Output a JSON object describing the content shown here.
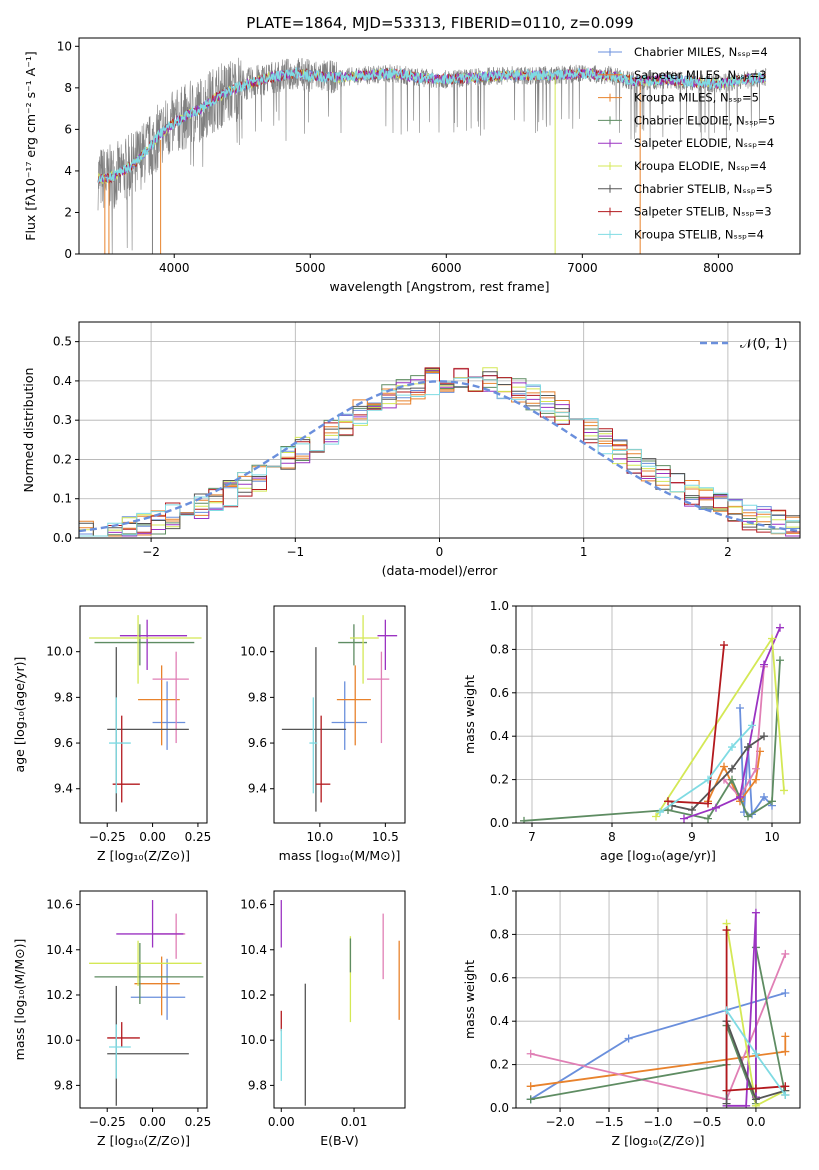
{
  "figure_title": "PLATE=1864, MJD=53313, FIBERID=0110, z=0.099",
  "colors": {
    "Chabrier MILES": "#6a8fdc",
    "Salpeter MILES": "#e8822c",
    "Kroupa MILES": "#e8822c",
    "Chabrier ELODIE": "#5e8c62",
    "Salpeter ELODIE": "#9b33c2",
    "Kroupa ELODIE": "#d4e855",
    "Chabrier STELIB": "#555555",
    "Salpeter STELIB": "#b3191e",
    "Kroupa STELIB": "#7fdbe3",
    "pink": "#e07fb5",
    "gray_data": "#808080",
    "normal_curve": "#6a8fdc"
  },
  "chart_data": [
    {
      "id": "spectrum",
      "type": "line",
      "xlabel": "wavelength [Angstrom, rest frame]",
      "ylabel": "Flux [fλ10⁻¹⁷ erg cm⁻² s⁻¹ A⁻¹]",
      "xlim": [
        3300,
        8600
      ],
      "ylim": [
        0,
        10.4
      ],
      "xticks": [
        4000,
        5000,
        6000,
        7000,
        8000
      ],
      "yticks": [
        0,
        2,
        4,
        6,
        8,
        10
      ],
      "legend_position": "right",
      "legend": [
        {
          "label": "Chabrier MILES, Nₛₛₚ=4",
          "color": "#6a8fdc"
        },
        {
          "label": "Salpeter MILES, Nₛₛₚ=3",
          "color": "#e8822c"
        },
        {
          "label": "Kroupa MILES, Nₛₛₚ=5",
          "color": "#e8822c"
        },
        {
          "label": "Chabrier ELODIE, Nₛₛₚ=5",
          "color": "#5e8c62"
        },
        {
          "label": "Salpeter ELODIE, Nₛₛₚ=4",
          "color": "#9b33c2"
        },
        {
          "label": "Kroupa ELODIE, Nₛₛₚ=4",
          "color": "#d4e855"
        },
        {
          "label": "Chabrier STELIB, Nₛₛₚ=5",
          "color": "#555555"
        },
        {
          "label": "Salpeter STELIB, Nₛₛₚ=3",
          "color": "#b3191e"
        },
        {
          "label": "Kroupa STELIB, Nₛₛₚ=4",
          "color": "#7fdbe3"
        }
      ],
      "continuum": {
        "x": [
          3440,
          3500,
          3600,
          3700,
          3800,
          3900,
          4000,
          4100,
          4200,
          4300,
          4400,
          4500,
          4600,
          4700,
          4800,
          4900,
          5000,
          5200,
          5400,
          5600,
          5800,
          6000,
          6200,
          6400,
          6600,
          6800,
          7000,
          7200,
          7400,
          7600,
          7800,
          8000,
          8200,
          8350
        ],
        "y": [
          3.7,
          3.6,
          3.9,
          4.3,
          5.0,
          5.8,
          6.3,
          6.7,
          7.0,
          7.5,
          7.8,
          8.1,
          8.3,
          8.5,
          8.6,
          8.7,
          8.6,
          8.5,
          8.6,
          8.7,
          8.5,
          8.4,
          8.5,
          8.6,
          8.6,
          8.6,
          8.7,
          8.6,
          8.3,
          8.4,
          8.3,
          8.2,
          8.4,
          8.5
        ]
      },
      "spikes": [
        {
          "x": 3490,
          "y0": 0,
          "y1": 3.8,
          "color": "#e8822c"
        },
        {
          "x": 3520,
          "y0": 0,
          "y1": 3.6,
          "color": "#e8822c"
        },
        {
          "x": 3840,
          "y0": 0,
          "y1": 4.8,
          "color": "#808080"
        },
        {
          "x": 3900,
          "y0": 0,
          "y1": 5.5,
          "color": "#e8822c"
        },
        {
          "x": 6800,
          "y0": 0,
          "y1": 8.6,
          "color": "#d4e855"
        },
        {
          "x": 7425,
          "y0": 0,
          "y1": 8.3,
          "color": "#e8822c"
        }
      ]
    },
    {
      "id": "residual_histogram",
      "type": "histogram",
      "xlabel": "(data-model)/error",
      "ylabel": "Normed distribution",
      "xlim": [
        -2.5,
        2.5
      ],
      "ylim": [
        0,
        0.55
      ],
      "xticks": [
        -2,
        -1,
        0,
        1,
        2
      ],
      "yticks": [
        0.0,
        0.1,
        0.2,
        0.3,
        0.4,
        0.5
      ],
      "grid": true,
      "legend": [
        {
          "label": "𝒩(0, 1)",
          "style": "dashed",
          "color": "#6a8fdc"
        }
      ],
      "legend_position": "top-right",
      "bin_width": 0.1
    },
    {
      "id": "age_vs_Z",
      "type": "errorbar",
      "xlabel": "Z [log₁₀(Z/Z⊙)]",
      "ylabel": "age  [log₁₀(age/yr)]",
      "xlim": [
        -0.4,
        0.3
      ],
      "ylim": [
        9.25,
        10.2
      ],
      "xticks": [
        -0.25,
        0.0,
        0.25
      ],
      "yticks": [
        9.4,
        9.6,
        9.8,
        10.0
      ],
      "points": [
        {
          "x": 0.08,
          "y": 9.69,
          "xerr": [
            0.08,
            0.1
          ],
          "yerr": [
            0.12,
            0.18
          ],
          "color": "#6a8fdc"
        },
        {
          "x": 0.05,
          "y": 9.79,
          "xerr": [
            0.13,
            0.1
          ],
          "yerr": [
            0.2,
            0.15
          ],
          "color": "#e8822c"
        },
        {
          "x": 0.13,
          "y": 9.88,
          "xerr": [
            0.13,
            0.07
          ],
          "yerr": [
            0.28,
            0.12
          ],
          "color": "#e07fb5"
        },
        {
          "x": -0.07,
          "y": 10.04,
          "xerr": [
            0.25,
            0.3
          ],
          "yerr": [
            0.1,
            0.08
          ],
          "color": "#5e8c62"
        },
        {
          "x": -0.03,
          "y": 10.07,
          "xerr": [
            0.15,
            0.22
          ],
          "yerr": [
            0.15,
            0.07
          ],
          "color": "#9b33c2"
        },
        {
          "x": -0.08,
          "y": 10.06,
          "xerr": [
            0.27,
            0.35
          ],
          "yerr": [
            0.2,
            0.1
          ],
          "color": "#d4e855"
        },
        {
          "x": -0.2,
          "y": 9.66,
          "xerr": [
            0.05,
            0.4
          ],
          "yerr": [
            0.36,
            0.36
          ],
          "color": "#555555"
        },
        {
          "x": -0.17,
          "y": 9.42,
          "xerr": [
            0.05,
            0.1
          ],
          "yerr": [
            0.08,
            0.3
          ],
          "color": "#b3191e"
        },
        {
          "x": -0.2,
          "y": 9.6,
          "xerr": [
            0.04,
            0.08
          ],
          "yerr": [
            0.22,
            0.2
          ],
          "color": "#7fdbe3"
        }
      ]
    },
    {
      "id": "age_vs_mass",
      "type": "errorbar",
      "xlabel": "mass [log₁₀(M/M⊙)]",
      "ylabel": "",
      "xlim": [
        9.65,
        10.65
      ],
      "ylim": [
        9.25,
        10.2
      ],
      "xticks": [
        10.0,
        10.5
      ],
      "yticks": [
        9.4,
        9.6,
        9.8,
        10.0
      ],
      "points": [
        {
          "x": 10.19,
          "y": 9.69,
          "xerr": [
            0.1,
            0.17
          ],
          "yerr": [
            0.12,
            0.18
          ],
          "color": "#6a8fdc"
        },
        {
          "x": 10.27,
          "y": 9.79,
          "xerr": [
            0.14,
            0.12
          ],
          "yerr": [
            0.2,
            0.15
          ],
          "color": "#e8822c"
        },
        {
          "x": 10.47,
          "y": 9.88,
          "xerr": [
            0.11,
            0.06
          ],
          "yerr": [
            0.28,
            0.12
          ],
          "color": "#e07fb5"
        },
        {
          "x": 10.26,
          "y": 10.04,
          "xerr": [
            0.12,
            0.1
          ],
          "yerr": [
            0.1,
            0.08
          ],
          "color": "#5e8c62"
        },
        {
          "x": 10.5,
          "y": 10.07,
          "xerr": [
            0.06,
            0.09
          ],
          "yerr": [
            0.15,
            0.07
          ],
          "color": "#9b33c2"
        },
        {
          "x": 10.33,
          "y": 10.06,
          "xerr": [
            0.1,
            0.12
          ],
          "yerr": [
            0.2,
            0.1
          ],
          "color": "#d4e855"
        },
        {
          "x": 9.97,
          "y": 9.66,
          "xerr": [
            0.26,
            0.23
          ],
          "yerr": [
            0.36,
            0.36
          ],
          "color": "#555555"
        },
        {
          "x": 10.01,
          "y": 9.42,
          "xerr": [
            0.04,
            0.07
          ],
          "yerr": [
            0.08,
            0.3
          ],
          "color": "#b3191e"
        },
        {
          "x": 9.95,
          "y": 9.6,
          "xerr": [
            0.03,
            0.03
          ],
          "yerr": [
            0.22,
            0.2
          ],
          "color": "#7fdbe3"
        }
      ]
    },
    {
      "id": "weight_vs_age",
      "type": "line",
      "xlabel": "age  [log₁₀(age/yr)]",
      "ylabel": "mass weight",
      "xlim": [
        6.8,
        10.35
      ],
      "ylim": [
        0,
        1.0
      ],
      "xticks": [
        7,
        8,
        9,
        10
      ],
      "yticks": [
        0.0,
        0.2,
        0.4,
        0.6,
        0.8,
        1.0
      ],
      "grid": true,
      "series": [
        {
          "color": "#6a8fdc",
          "x": [
            9.6,
            9.65,
            9.7,
            9.75,
            9.9,
            10.0
          ],
          "y": [
            0.53,
            0.05,
            0.35,
            0.04,
            0.12,
            0.08
          ]
        },
        {
          "color": "#e8822c",
          "x": [
            9.2,
            9.4,
            9.6,
            9.8,
            9.85
          ],
          "y": [
            0.1,
            0.26,
            0.1,
            0.2,
            0.33
          ]
        },
        {
          "color": "#e07fb5",
          "x": [
            9.4,
            9.6,
            9.8,
            9.9
          ],
          "y": [
            0.2,
            0.12,
            0.25,
            0.72
          ]
        },
        {
          "color": "#5e8c62",
          "x": [
            6.9,
            8.7,
            9.2,
            9.5,
            9.7,
            10.0,
            10.1
          ],
          "y": [
            0.01,
            0.06,
            0.02,
            0.2,
            0.03,
            0.1,
            0.75
          ]
        },
        {
          "color": "#9b33c2",
          "x": [
            8.9,
            9.3,
            9.6,
            9.9,
            10.1
          ],
          "y": [
            0.02,
            0.07,
            0.12,
            0.73,
            0.9
          ]
        },
        {
          "color": "#d4e855",
          "x": [
            8.55,
            10.0,
            10.15
          ],
          "y": [
            0.03,
            0.85,
            0.15
          ]
        },
        {
          "color": "#555555",
          "x": [
            8.75,
            9.0,
            9.5,
            9.7,
            9.9
          ],
          "y": [
            0.08,
            0.06,
            0.25,
            0.35,
            0.4
          ]
        },
        {
          "color": "#b3191e",
          "x": [
            8.7,
            9.2,
            9.4
          ],
          "y": [
            0.1,
            0.09,
            0.82
          ]
        },
        {
          "color": "#7fdbe3",
          "x": [
            8.6,
            9.2,
            9.5,
            9.75
          ],
          "y": [
            0.05,
            0.2,
            0.35,
            0.45
          ]
        }
      ]
    },
    {
      "id": "mass_vs_Z",
      "type": "errorbar",
      "xlabel": "Z [log₁₀(Z/Z⊙)]",
      "ylabel": "mass [log₁₀(M/M⊙)]",
      "xlim": [
        -0.4,
        0.3
      ],
      "ylim": [
        9.7,
        10.66
      ],
      "xticks": [
        -0.25,
        0.0,
        0.25
      ],
      "yticks": [
        9.8,
        10.0,
        10.2,
        10.4,
        10.6
      ],
      "points": [
        {
          "x": 0.08,
          "y": 10.19,
          "xerr": [
            0.2,
            0.1
          ],
          "yerr": [
            0.1,
            0.17
          ],
          "color": "#6a8fdc"
        },
        {
          "x": 0.05,
          "y": 10.25,
          "xerr": [
            0.15,
            0.1
          ],
          "yerr": [
            0.14,
            0.12
          ],
          "color": "#e8822c"
        },
        {
          "x": 0.13,
          "y": 10.47,
          "xerr": [
            0.13,
            0.05
          ],
          "yerr": [
            0.11,
            0.09
          ],
          "color": "#e07fb5"
        },
        {
          "x": -0.07,
          "y": 10.28,
          "xerr": [
            0.25,
            0.35
          ],
          "yerr": [
            0.12,
            0.15
          ],
          "color": "#5e8c62"
        },
        {
          "x": 0.0,
          "y": 10.47,
          "xerr": [
            0.2,
            0.17
          ],
          "yerr": [
            0.06,
            0.15
          ],
          "color": "#9b33c2"
        },
        {
          "x": -0.08,
          "y": 10.34,
          "xerr": [
            0.27,
            0.35
          ],
          "yerr": [
            0.1,
            0.1
          ],
          "color": "#d4e855"
        },
        {
          "x": -0.2,
          "y": 9.94,
          "xerr": [
            0.05,
            0.4
          ],
          "yerr": [
            0.23,
            0.3
          ],
          "color": "#555555"
        },
        {
          "x": -0.17,
          "y": 10.01,
          "xerr": [
            0.08,
            0.1
          ],
          "yerr": [
            0.04,
            0.07
          ],
          "color": "#b3191e"
        },
        {
          "x": -0.2,
          "y": 9.97,
          "xerr": [
            0.04,
            0.08
          ],
          "yerr": [
            0.14,
            0.1
          ],
          "color": "#7fdbe3"
        }
      ]
    },
    {
      "id": "mass_vs_ebv",
      "type": "errorbar",
      "xlabel": "E(B-V)",
      "ylabel": "",
      "xlim": [
        -0.001,
        0.017
      ],
      "ylim": [
        9.7,
        10.66
      ],
      "xticks": [
        0.0,
        0.01
      ],
      "xtick_labels": [
        "0.00",
        "0.01"
      ],
      "yticks": [
        9.8,
        10.0,
        10.2,
        10.4,
        10.6
      ],
      "points": [
        {
          "x": 0.0,
          "y": 10.47,
          "yerr": [
            0.06,
            0.15
          ],
          "color": "#9b33c2"
        },
        {
          "x": 0.0,
          "y": 10.08,
          "yerr": [
            0.04,
            0.05
          ],
          "color": "#b3191e"
        },
        {
          "x": 0.0,
          "y": 9.95,
          "yerr": [
            0.13,
            0.1
          ],
          "color": "#7fdbe3"
        },
        {
          "x": 0.0033,
          "y": 9.98,
          "yerr": [
            0.27,
            0.27
          ],
          "color": "#555555"
        },
        {
          "x": 0.0095,
          "y": 10.26,
          "yerr": [
            0.18,
            0.2
          ],
          "color": "#d4e855"
        },
        {
          "x": 0.0095,
          "y": 10.35,
          "yerr": [
            0.05,
            0.1
          ],
          "color": "#5e8c62"
        },
        {
          "x": 0.014,
          "y": 10.42,
          "yerr": [
            0.15,
            0.14
          ],
          "color": "#e07fb5"
        },
        {
          "x": 0.0162,
          "y": 10.26,
          "yerr": [
            0.17,
            0.18
          ],
          "color": "#e8822c"
        }
      ]
    },
    {
      "id": "weight_vs_Z",
      "type": "line",
      "xlabel": "Z [log₁₀(Z/Z⊙)]",
      "ylabel": "mass weight",
      "xlim": [
        -2.45,
        0.45
      ],
      "ylim": [
        0,
        1.0
      ],
      "xticks": [
        -2.0,
        -1.5,
        -1.0,
        -0.5,
        0.0
      ],
      "yticks": [
        0.0,
        0.2,
        0.4,
        0.6,
        0.8,
        1.0
      ],
      "grid": true,
      "series": [
        {
          "color": "#6a8fdc",
          "x": [
            -2.3,
            -1.3,
            0.3
          ],
          "y": [
            0.04,
            0.32,
            0.53
          ]
        },
        {
          "color": "#e8822c",
          "x": [
            -2.3,
            0.3,
            0.3
          ],
          "y": [
            0.1,
            0.26,
            0.33
          ]
        },
        {
          "color": "#e07fb5",
          "x": [
            -2.3,
            -0.3,
            0.3
          ],
          "y": [
            0.25,
            0.04,
            0.71
          ]
        },
        {
          "color": "#5e8c62",
          "x": [
            -2.3,
            -0.3,
            -0.3,
            0.0,
            0.0,
            0.3
          ],
          "y": [
            0.04,
            0.2,
            0.38,
            0.02,
            0.74,
            0.06
          ]
        },
        {
          "color": "#9b33c2",
          "x": [
            -0.3,
            -0.1,
            0.0,
            0.0
          ],
          "y": [
            0.01,
            0.01,
            0.9,
            0.05
          ]
        },
        {
          "color": "#d4e855",
          "x": [
            -0.3,
            0.0,
            0.3
          ],
          "y": [
            0.85,
            0.01,
            0.08
          ]
        },
        {
          "color": "#555555",
          "x": [
            -0.3,
            -0.3,
            0.0,
            0.3
          ],
          "y": [
            0.02,
            0.4,
            0.04,
            0.08
          ]
        },
        {
          "color": "#b3191e",
          "x": [
            -0.3,
            -0.3,
            0.0,
            0.3
          ],
          "y": [
            0.82,
            0.08,
            0.09,
            0.1
          ]
        },
        {
          "color": "#7fdbe3",
          "x": [
            -0.3,
            0.0,
            0.3
          ],
          "y": [
            0.45,
            0.25,
            0.06
          ]
        }
      ]
    }
  ]
}
